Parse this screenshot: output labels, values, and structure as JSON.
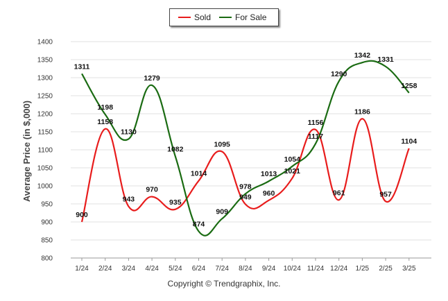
{
  "chart_data": {
    "type": "line",
    "ylabel": "Average Price (in $,000)",
    "xlabel": "",
    "categories": [
      "1/24",
      "2/24",
      "3/24",
      "4/24",
      "5/24",
      "6/24",
      "7/24",
      "8/24",
      "9/24",
      "10/24",
      "11/24",
      "12/24",
      "1/25",
      "2/25",
      "3/25"
    ],
    "ylim": [
      800,
      1400
    ],
    "yticks": [
      800,
      850,
      900,
      950,
      1000,
      1050,
      1100,
      1150,
      1200,
      1250,
      1300,
      1350,
      1400
    ],
    "grid": true,
    "legend_position": "top-center",
    "series": [
      {
        "name": "Sold",
        "color": "#e81c1c",
        "values": [
          900,
          1158,
          943,
          970,
          935,
          1014,
          1095,
          949,
          960,
          1021,
          1156,
          961,
          1186,
          957,
          1104
        ]
      },
      {
        "name": "For Sale",
        "color": "#1a6b12",
        "values": [
          1311,
          1198,
          1130,
          1279,
          1082,
          874,
          909,
          978,
          1013,
          1054,
          1117,
          1290,
          1342,
          1331,
          1258
        ]
      }
    ]
  },
  "copyright": "Copyright © Trendgraphix, Inc."
}
